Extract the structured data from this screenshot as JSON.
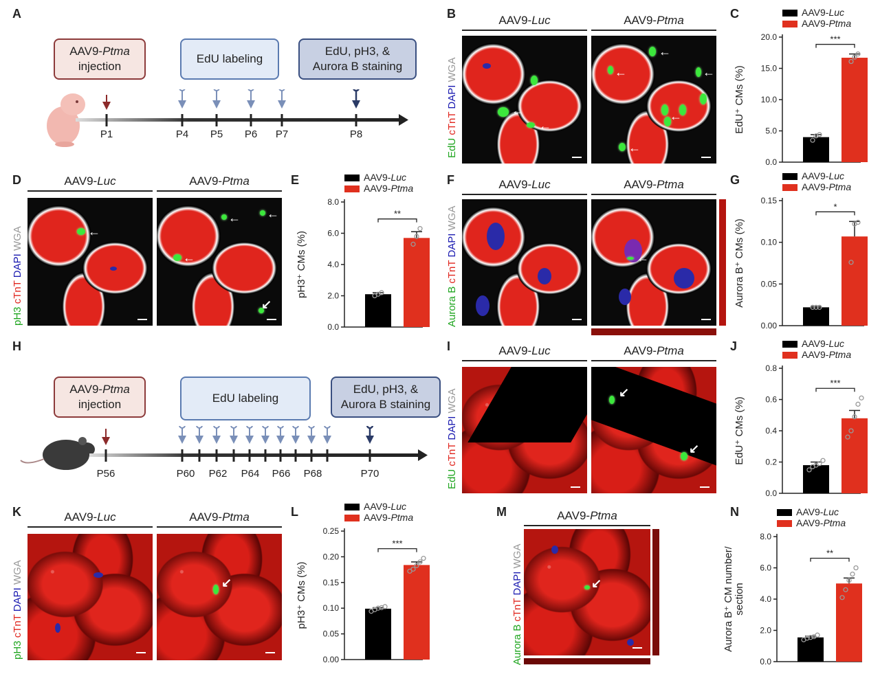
{
  "panels": {
    "A": "A",
    "B": "B",
    "C": "C",
    "D": "D",
    "E": "E",
    "F": "F",
    "G": "G",
    "H": "H",
    "I": "I",
    "J": "J",
    "K": "K",
    "L": "L",
    "M": "M",
    "N": "N"
  },
  "groups": {
    "luc": {
      "prefix": "AAV9-",
      "gene": "Luc"
    },
    "ptma": {
      "prefix": "AAV9-",
      "gene": "Ptma"
    }
  },
  "stain_labels": {
    "B": [
      [
        "EdU",
        "#1fa51f"
      ],
      [
        " cTnT",
        "#e0251d"
      ],
      [
        " DAPI",
        "#1a1ab0"
      ],
      [
        " WGA",
        "#999999"
      ]
    ],
    "D": [
      [
        "pH3",
        "#1fa51f"
      ],
      [
        " cTnT",
        "#e0251d"
      ],
      [
        " DAPI",
        "#1a1ab0"
      ],
      [
        " WGA",
        "#999999"
      ]
    ],
    "F": [
      [
        "Aurora B",
        "#1fa51f"
      ],
      [
        " cTnT",
        "#e0251d"
      ],
      [
        " DAPI",
        "#1a1ab0"
      ],
      [
        " WGA",
        "#999999"
      ]
    ],
    "I": [
      [
        "EdU",
        "#1fa51f"
      ],
      [
        " cTnT",
        "#e0251d"
      ],
      [
        " DAPI",
        "#1a1ab0"
      ],
      [
        " WGA",
        "#999999"
      ]
    ],
    "K": [
      [
        "pH3",
        "#1fa51f"
      ],
      [
        " cTnT",
        "#e0251d"
      ],
      [
        " DAPI",
        "#1a1ab0"
      ],
      [
        " WGA",
        "#999999"
      ]
    ],
    "M": [
      [
        "Aurora B",
        "#1fa51f"
      ],
      [
        " cTnT",
        "#e0251d"
      ],
      [
        " DAPI",
        "#1a1ab0"
      ],
      [
        " WGA",
        "#999999"
      ]
    ]
  },
  "timeline_A": {
    "injection_prefix": "AAV9-",
    "injection_gene": "Ptma",
    "injection_suffix": "injection",
    "labeling": "EdU labeling",
    "staining_line1": "EdU, pH3, &",
    "staining_line2": "Aurora B staining",
    "days": [
      "P1",
      "P4",
      "P5",
      "P6",
      "P7",
      "P8"
    ]
  },
  "timeline_H": {
    "injection_prefix": "AAV9-",
    "injection_gene": "Ptma",
    "injection_suffix": "injection",
    "labeling": "EdU labeling",
    "staining_line1": "EdU, pH3, &",
    "staining_line2": "Aurora B staining",
    "days": [
      "P56",
      "P60",
      "P62",
      "P64",
      "P66",
      "P68",
      "P70"
    ]
  },
  "colors": {
    "luc": "#000000",
    "ptma": "#e0301e",
    "axis": "#222222"
  },
  "chart_data": [
    {
      "panel": "C",
      "type": "bar",
      "categories": [
        "AAV9-Luc",
        "AAV9-Ptma"
      ],
      "values": [
        4.0,
        16.7
      ],
      "errors": [
        0.4,
        0.6
      ],
      "points": [
        [
          3.5,
          4.2,
          4.4
        ],
        [
          16.1,
          16.8,
          17.3
        ]
      ],
      "ylabel": "EdU⁺ CMs (%)",
      "ylim": [
        0,
        20
      ],
      "yticks": [
        "0.0",
        "5.0",
        "10.0",
        "15.0",
        "20.0"
      ],
      "significance": "***"
    },
    {
      "panel": "E",
      "type": "bar",
      "categories": [
        "AAV9-Luc",
        "AAV9-Ptma"
      ],
      "values": [
        2.1,
        5.7
      ],
      "errors": [
        0.1,
        0.4
      ],
      "points": [
        [
          2.0,
          2.1,
          2.2
        ],
        [
          5.3,
          5.8,
          6.3
        ]
      ],
      "ylabel": "pH3⁺ CMs (%)",
      "ylim": [
        0,
        8
      ],
      "yticks": [
        "0.0",
        "2.0",
        "4.0",
        "6.0",
        "8.0"
      ],
      "significance": "**"
    },
    {
      "panel": "G",
      "type": "bar",
      "categories": [
        "AAV9-Luc",
        "AAV9-Ptma"
      ],
      "values": [
        0.022,
        0.107
      ],
      "errors": [
        0.001,
        0.018
      ],
      "points": [
        [
          0.022,
          0.022,
          0.022
        ],
        [
          0.076,
          0.122,
          0.124
        ]
      ],
      "ylabel": "Aurora B⁺ CMs (%)",
      "ylim": [
        0,
        0.15
      ],
      "yticks": [
        "0.00",
        "0.05",
        "0.10",
        "0.15"
      ],
      "significance": "*"
    },
    {
      "panel": "J",
      "type": "bar",
      "categories": [
        "AAV9-Luc",
        "AAV9-Ptma"
      ],
      "values": [
        0.18,
        0.48
      ],
      "errors": [
        0.02,
        0.05
      ],
      "points": [
        [
          0.15,
          0.17,
          0.18,
          0.19,
          0.21
        ],
        [
          0.36,
          0.4,
          0.49,
          0.57,
          0.61
        ]
      ],
      "ylabel": "EdU⁺ CMs (%)",
      "ylim": [
        0,
        0.8
      ],
      "yticks": [
        "0.0",
        "0.2",
        "0.4",
        "0.6",
        "0.8"
      ],
      "significance": "***"
    },
    {
      "panel": "L",
      "type": "bar",
      "categories": [
        "AAV9-Luc",
        "AAV9-Ptma"
      ],
      "values": [
        0.099,
        0.184
      ],
      "errors": [
        0.002,
        0.006
      ],
      "points": [
        [
          0.094,
          0.097,
          0.1,
          0.101,
          0.103
        ],
        [
          0.172,
          0.176,
          0.183,
          0.19,
          0.197
        ]
      ],
      "ylabel": "pH3⁺ CMs (%)",
      "ylim": [
        0,
        0.25
      ],
      "yticks": [
        "0.00",
        "0.05",
        "0.10",
        "0.15",
        "0.20",
        "0.25"
      ],
      "significance": "***"
    },
    {
      "panel": "N",
      "type": "bar",
      "categories": [
        "AAV9-Luc",
        "AAV9-Ptma"
      ],
      "values": [
        1.55,
        5.0
      ],
      "errors": [
        0.08,
        0.35
      ],
      "points": [
        [
          1.4,
          1.5,
          1.55,
          1.6,
          1.7
        ],
        [
          4.1,
          4.6,
          5.2,
          5.6,
          6.0
        ]
      ],
      "ylabel": "Aurora B⁺ CM number/\nsection",
      "ylim": [
        0,
        8
      ],
      "yticks": [
        "0.0",
        "2.0",
        "4.0",
        "6.0",
        "8.0"
      ],
      "significance": "**"
    }
  ]
}
